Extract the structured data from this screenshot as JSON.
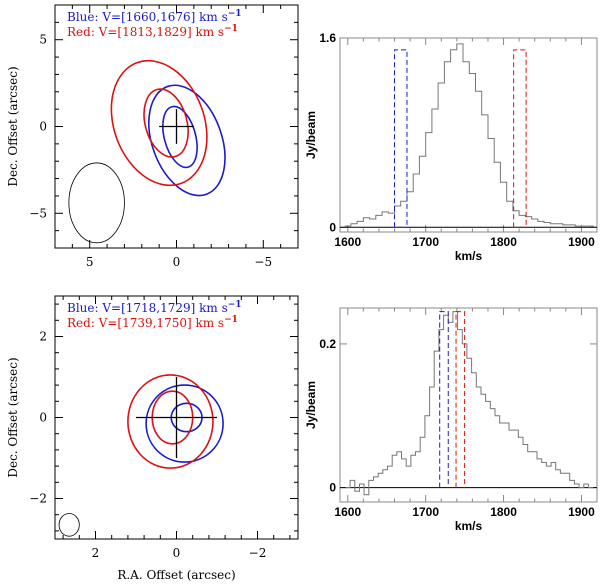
{
  "colors": {
    "blue": "#1a1acc",
    "red": "#dd1111",
    "black": "#000000",
    "gray": "#777777"
  },
  "chart_data": [
    {
      "type": "contour",
      "panel": "top-left",
      "legend": [
        {
          "label": "Blue: V=[1660,1676] km s",
          "sup": "−1",
          "color": "#1a1acc"
        },
        {
          "label": "Red: V=[1813,1829] km s",
          "sup": "−1",
          "color": "#dd1111"
        }
      ],
      "xlabel": "",
      "ylabel": "Dec. Offset (arcsec)",
      "xlim": [
        7,
        -7
      ],
      "ylim": [
        -7,
        7
      ],
      "xticks": [
        5,
        0,
        -5
      ],
      "yticks": [
        5,
        0,
        -5
      ],
      "contours": [
        {
          "color": "blue",
          "cx": -0.6,
          "cy": -0.8,
          "rx": 2.0,
          "ry": 3.3,
          "rot": 20
        },
        {
          "color": "blue",
          "cx": -0.2,
          "cy": -0.6,
          "rx": 0.9,
          "ry": 1.8,
          "rot": 15
        },
        {
          "color": "red",
          "cx": 1.0,
          "cy": 0.2,
          "rx": 2.6,
          "ry": 3.7,
          "rot": 20
        },
        {
          "color": "red",
          "cx": 0.6,
          "cy": 0.2,
          "rx": 1.2,
          "ry": 2.0,
          "rot": 15
        }
      ],
      "beam": {
        "cx": 4.6,
        "cy": -4.4,
        "rx": 1.6,
        "ry": 2.3,
        "rot": 0
      },
      "cross": {
        "x": 0,
        "y": 0,
        "hx": 1,
        "hy": 1
      }
    },
    {
      "type": "line",
      "panel": "top-right",
      "xlabel": "km/s",
      "ylabel": "Jy/beam",
      "xlim": [
        1590,
        1920
      ],
      "ylim": [
        -0.04,
        1.6
      ],
      "xticks": [
        1600,
        1700,
        1800,
        1900
      ],
      "yticks": [
        0,
        1.6
      ],
      "ytick_labels": [
        "0",
        "1.6"
      ],
      "x": [
        1600,
        1608,
        1616,
        1624,
        1632,
        1640,
        1648,
        1656,
        1664,
        1672,
        1680,
        1688,
        1696,
        1704,
        1712,
        1720,
        1728,
        1736,
        1744,
        1752,
        1760,
        1768,
        1776,
        1784,
        1792,
        1800,
        1808,
        1816,
        1824,
        1832,
        1840,
        1848,
        1856,
        1864,
        1872,
        1880,
        1888,
        1896,
        1904,
        1912
      ],
      "y": [
        0.01,
        0.03,
        0.05,
        0.08,
        0.07,
        0.1,
        0.13,
        0.12,
        0.18,
        0.22,
        0.3,
        0.45,
        0.6,
        0.8,
        1.0,
        1.22,
        1.4,
        1.5,
        1.55,
        1.4,
        1.3,
        1.15,
        0.95,
        0.75,
        0.55,
        0.38,
        0.22,
        0.14,
        0.1,
        0.09,
        0.07,
        0.05,
        0.04,
        0.03,
        0.03,
        0.02,
        0.02,
        0.01,
        0.01,
        0.01
      ],
      "windows": [
        {
          "color": "blue",
          "x1": 1660,
          "x2": 1676
        },
        {
          "color": "red",
          "x1": 1813,
          "x2": 1829
        }
      ],
      "window_top": 1.5
    },
    {
      "type": "contour",
      "panel": "bottom-left",
      "legend": [
        {
          "label": "Blue: V=[1718,1729] km s",
          "sup": "−1",
          "color": "#1a1acc"
        },
        {
          "label": "Red: V=[1739,1750] km s",
          "sup": "−1",
          "color": "#dd1111"
        }
      ],
      "xlabel": "R.A. Offset (arcsec)",
      "ylabel": "Dec. Offset (arcsec)",
      "xlim": [
        3,
        -3
      ],
      "ylim": [
        -3,
        3
      ],
      "xticks": [
        2,
        0,
        -2
      ],
      "yticks": [
        2,
        0,
        -2
      ],
      "contours": [
        {
          "color": "blue",
          "cx": -0.2,
          "cy": -0.15,
          "rx": 0.95,
          "ry": 0.95,
          "rot": 0
        },
        {
          "color": "blue",
          "cx": -0.25,
          "cy": 0.0,
          "rx": 0.38,
          "ry": 0.35,
          "rot": 0
        },
        {
          "color": "red",
          "cx": 0.15,
          "cy": -0.1,
          "rx": 1.05,
          "ry": 1.15,
          "rot": 0
        },
        {
          "color": "red",
          "cx": 0.1,
          "cy": 0.0,
          "rx": 0.5,
          "ry": 0.65,
          "rot": 0
        }
      ],
      "beam": {
        "cx": 2.65,
        "cy": -2.65,
        "rx": 0.25,
        "ry": 0.28,
        "rot": 0
      },
      "cross": {
        "x": 0,
        "y": 0,
        "hx": 1,
        "hy": 1
      }
    },
    {
      "type": "line",
      "panel": "bottom-right",
      "xlabel": "km/s",
      "ylabel": "Jy/beam",
      "xlim": [
        1590,
        1920
      ],
      "ylim": [
        -0.02,
        0.25
      ],
      "xticks": [
        1600,
        1700,
        1800,
        1900
      ],
      "yticks": [
        0,
        0.2
      ],
      "ytick_labels": [
        "0",
        "0.2"
      ],
      "x": [
        1600,
        1606,
        1612,
        1618,
        1624,
        1630,
        1636,
        1642,
        1648,
        1654,
        1660,
        1666,
        1672,
        1678,
        1684,
        1690,
        1696,
        1702,
        1708,
        1714,
        1720,
        1726,
        1732,
        1738,
        1744,
        1750,
        1756,
        1762,
        1768,
        1774,
        1780,
        1786,
        1792,
        1798,
        1804,
        1810,
        1816,
        1822,
        1828,
        1834,
        1840,
        1846,
        1852,
        1858,
        1864,
        1870,
        1876,
        1882,
        1888,
        1894,
        1900,
        1906,
        1912
      ],
      "y": [
        0.0,
        0.01,
        -0.005,
        0.005,
        -0.01,
        0.01,
        0.015,
        0.02,
        0.025,
        0.03,
        0.045,
        0.05,
        0.04,
        0.03,
        0.045,
        0.05,
        0.07,
        0.1,
        0.14,
        0.19,
        0.22,
        0.24,
        0.23,
        0.245,
        0.22,
        0.2,
        0.18,
        0.16,
        0.14,
        0.13,
        0.12,
        0.11,
        0.1,
        0.09,
        0.09,
        0.08,
        0.08,
        0.07,
        0.06,
        0.05,
        0.05,
        0.04,
        0.035,
        0.03,
        0.035,
        0.025,
        0.02,
        0.02,
        0.01,
        0.005,
        0.0,
        0.005,
        0.0
      ],
      "windows": [
        {
          "color": "blue",
          "x1": 1718,
          "x2": 1729
        },
        {
          "color": "red",
          "x1": 1739,
          "x2": 1750
        }
      ],
      "window_top": 0.245
    }
  ]
}
